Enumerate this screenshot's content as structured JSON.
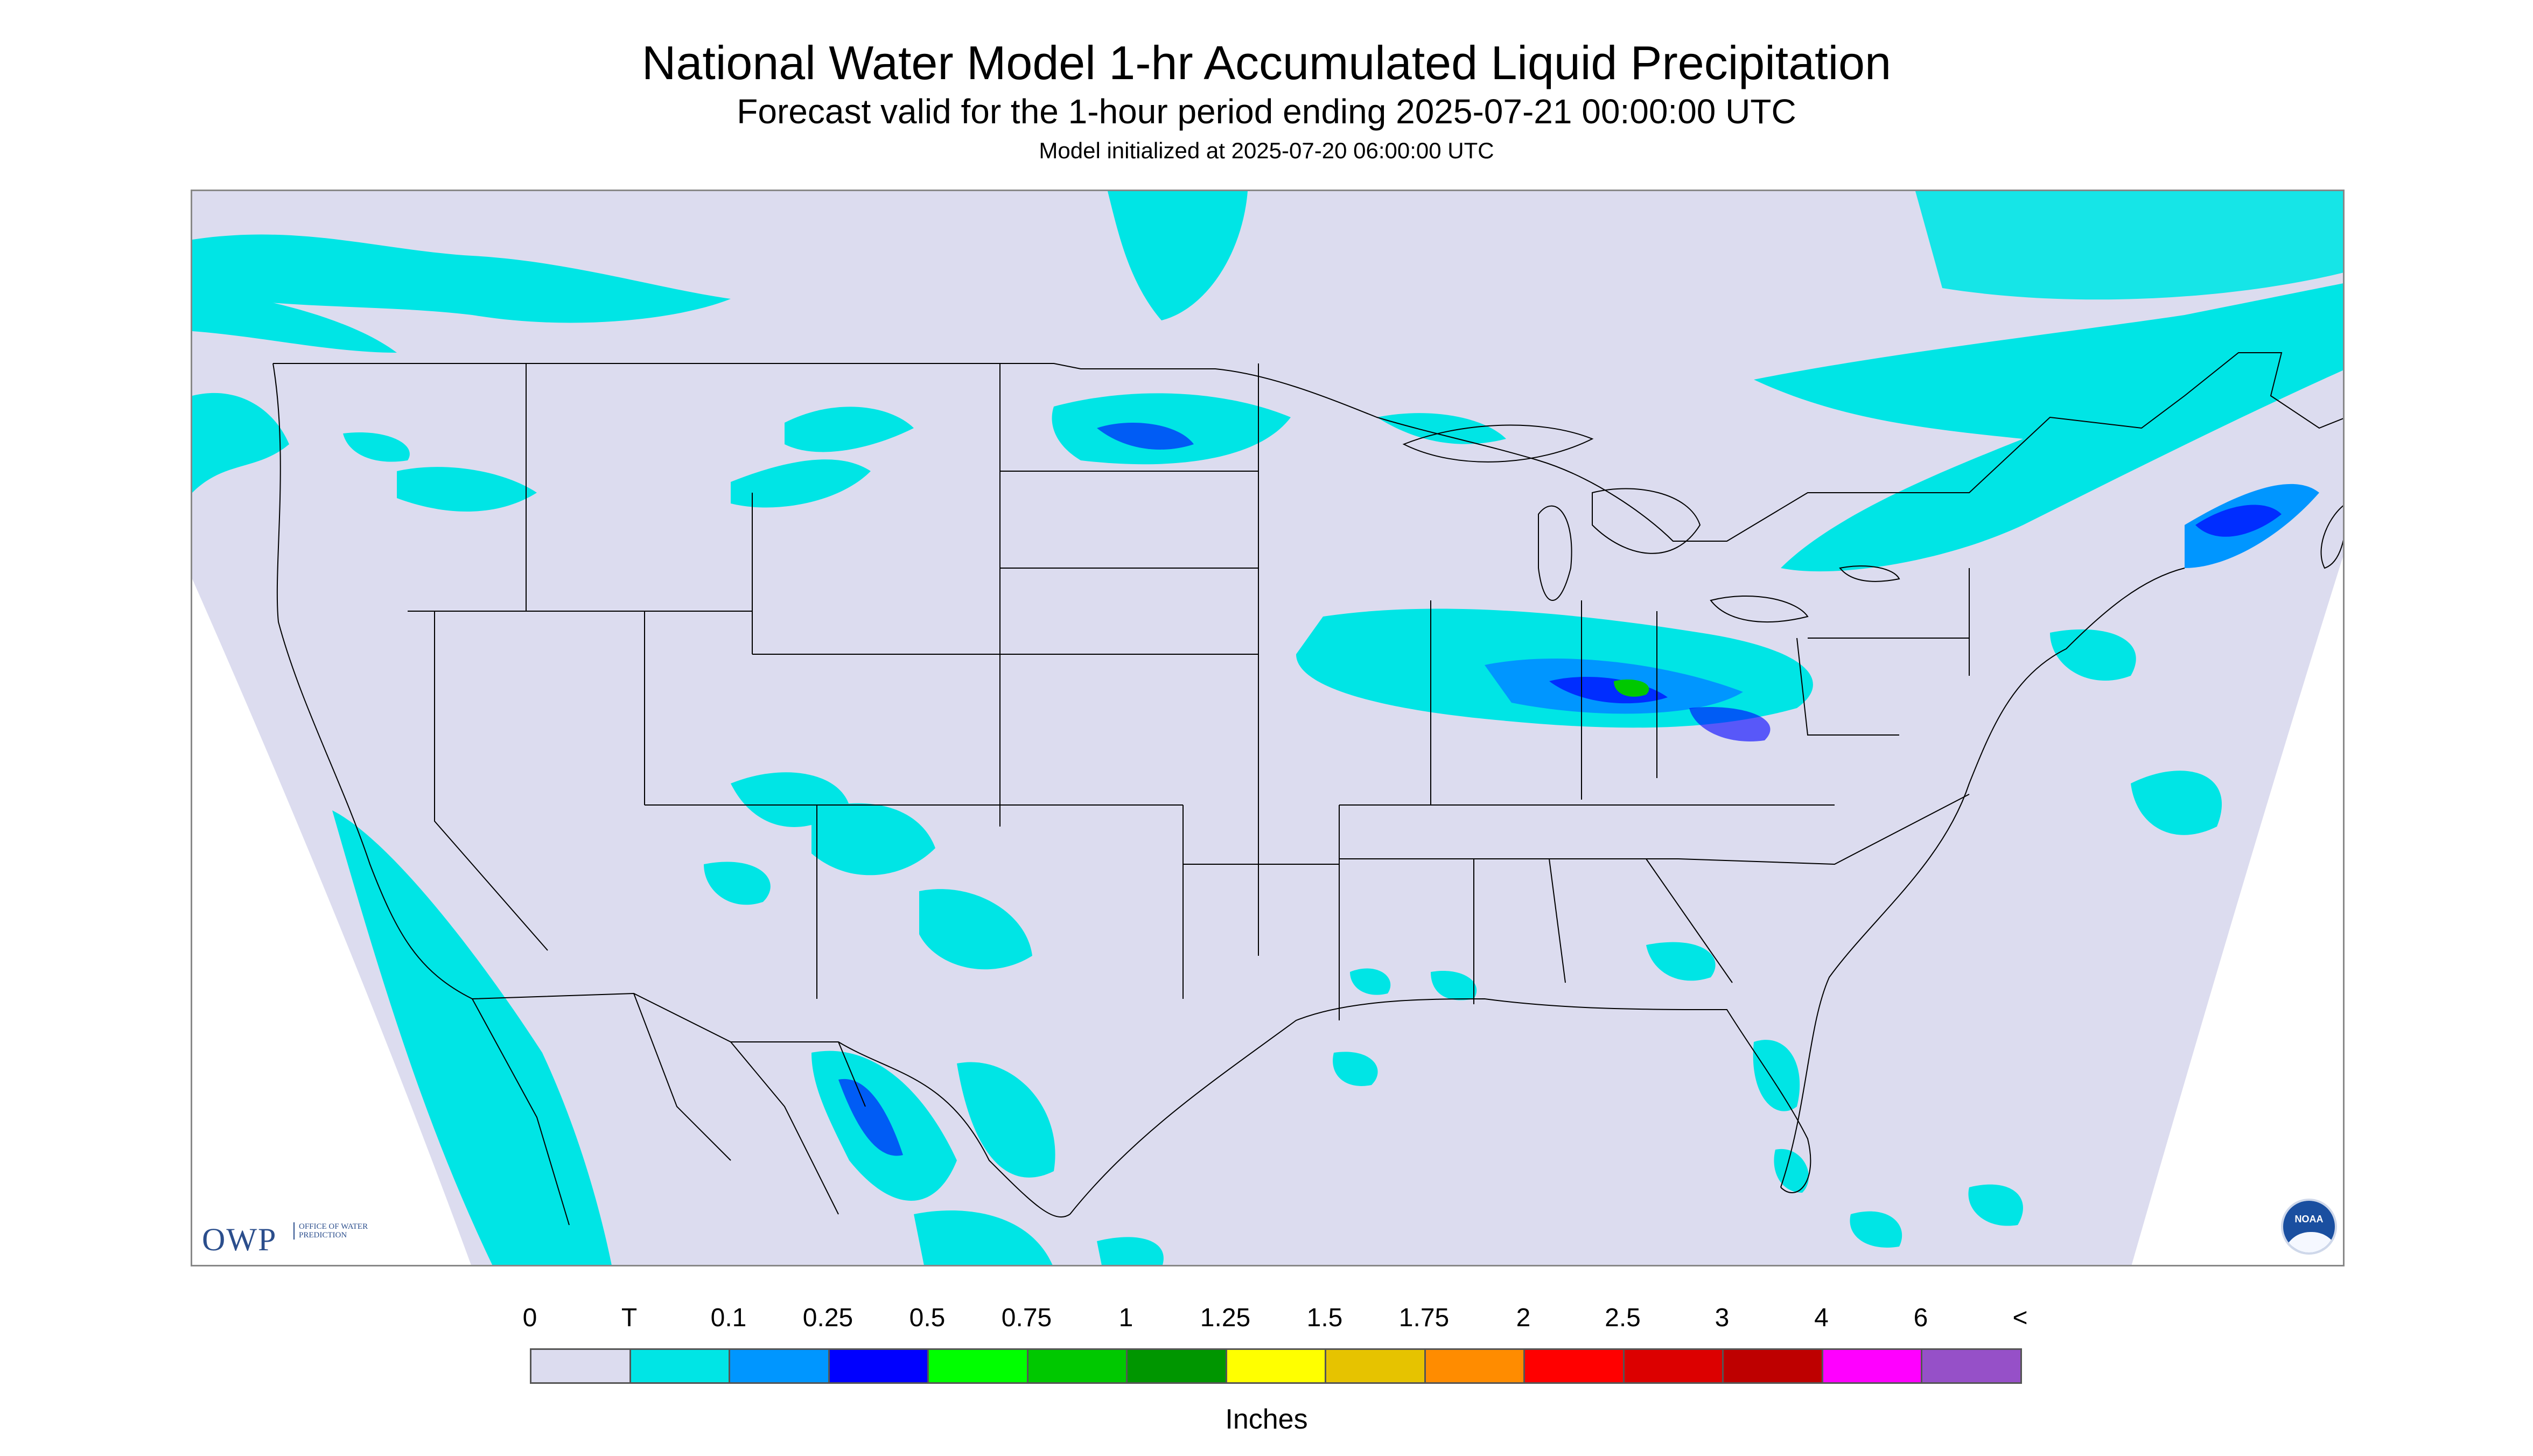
{
  "header": {
    "title": "National Water Model 1-hr Accumulated Liquid Precipitation",
    "subtitle": "Forecast valid for the 1-hour period ending 2025-07-21 00:00:00 UTC",
    "init_note": "Model initialized at 2025-07-20 06:00:00 UTC"
  },
  "map": {
    "background_color": "#dcdcef",
    "outside_color": "#ffffff",
    "boundary_color": "#000000",
    "precip_light_color": "#00e5e5",
    "precip_med_color": "#0096ff",
    "precip_heavy_color": "#0000ff",
    "precip_green_color": "#00c800"
  },
  "logos": {
    "owp_big": "OWP",
    "owp_small": "OFFICE OF WATER PREDICTION",
    "noaa": "NOAA"
  },
  "legend": {
    "units": "Inches",
    "ticks": [
      "0",
      "T",
      "0.1",
      "0.25",
      "0.5",
      "0.75",
      "1",
      "1.25",
      "1.5",
      "1.75",
      "2",
      "2.5",
      "3",
      "4",
      "6",
      "<"
    ],
    "colors": [
      "#dcdcef",
      "#00e5e5",
      "#0096ff",
      "#0000ff",
      "#00ff00",
      "#00c800",
      "#009600",
      "#ffff00",
      "#e6c300",
      "#ff8c00",
      "#ff0000",
      "#dc0000",
      "#be0000",
      "#ff00ff",
      "#9650c8"
    ]
  }
}
